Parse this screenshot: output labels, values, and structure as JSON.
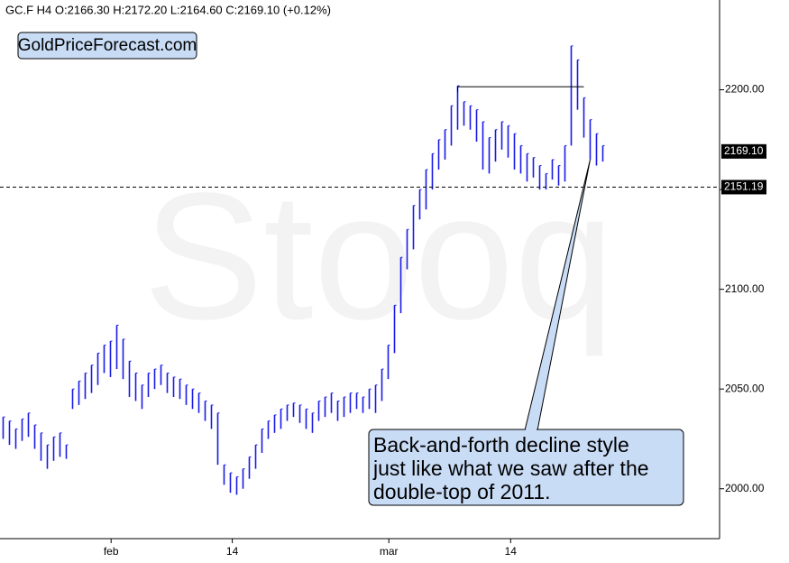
{
  "chart_data": {
    "type": "ohlc",
    "header": "GC.F  H4  O:2166.30  H:2172.20  L:2164.60  C:2169.10  (+0.12%)",
    "logo": "GoldPriceForecast.com",
    "watermark": "Stooq",
    "color": "#1a1ae6",
    "xlim": [
      -0.5,
      113.5
    ],
    "xticks": [
      {
        "value": 17.1,
        "label": "feb"
      },
      {
        "value": 36.3,
        "label": "14"
      },
      {
        "value": 61.1,
        "label": "mar"
      },
      {
        "value": 80.4,
        "label": "14"
      }
    ],
    "ylim": [
      1975,
      2245
    ],
    "yticks": [
      {
        "value": 2000,
        "label": "2000.00"
      },
      {
        "value": 2050,
        "label": "2050.00"
      },
      {
        "value": 2100,
        "label": "2100.00"
      },
      {
        "value": 2150,
        "label": "2150.00"
      },
      {
        "value": 2200,
        "label": "2200.00"
      }
    ],
    "last_price": {
      "value": 2169.1,
      "label": "2169.10"
    },
    "support": {
      "value": 2151.19,
      "label": "2151.19"
    },
    "resistance": {
      "value": 2201.5,
      "x": [
        72,
        92
      ]
    },
    "annotation": {
      "lines": [
        "Back-and-forth decline style",
        "just like what we saw after the",
        "double-top of 2011."
      ],
      "target_x": 93,
      "target_y": 2165
    },
    "high": [
      2036,
      2034,
      2030,
      2035,
      2038,
      2032,
      2028,
      2022,
      2026,
      2028,
      2022,
      2050,
      2054,
      2058,
      2062,
      2068,
      2072,
      2074,
      2082,
      2075,
      2064,
      2058,
      2052,
      2058,
      2060,
      2062,
      2058,
      2056,
      2055,
      2052,
      2050,
      2048,
      2044,
      2042,
      2038,
      2012,
      2008,
      2006,
      2010,
      2016,
      2022,
      2030,
      2034,
      2037,
      2040,
      2042,
      2043,
      2042,
      2040,
      2038,
      2044,
      2046,
      2048,
      2044,
      2046,
      2048,
      2048,
      2046,
      2050,
      2052,
      2060,
      2072,
      2092,
      2116,
      2130,
      2142,
      2150,
      2160,
      2168,
      2175,
      2180,
      2192,
      2202,
      2194,
      2192,
      2190,
      2184,
      2176,
      2180,
      2184,
      2182,
      2178,
      2172,
      2168,
      2166,
      2162,
      2158,
      2165,
      2162,
      2172,
      2222,
      2215,
      2196,
      2185,
      2178,
      2172
    ],
    "low": [
      2025,
      2022,
      2020,
      2024,
      2026,
      2020,
      2014,
      2010,
      2014,
      2016,
      2015,
      2040,
      2042,
      2045,
      2048,
      2052,
      2058,
      2056,
      2060,
      2055,
      2046,
      2044,
      2040,
      2046,
      2050,
      2052,
      2048,
      2046,
      2045,
      2042,
      2040,
      2038,
      2034,
      2030,
      2012,
      2002,
      1998,
      1997,
      2000,
      2005,
      2010,
      2018,
      2025,
      2028,
      2030,
      2034,
      2036,
      2033,
      2030,
      2028,
      2034,
      2036,
      2038,
      2034,
      2036,
      2038,
      2040,
      2038,
      2040,
      2038,
      2044,
      2055,
      2068,
      2088,
      2110,
      2120,
      2135,
      2140,
      2150,
      2160,
      2165,
      2172,
      2180,
      2182,
      2180,
      2174,
      2160,
      2158,
      2164,
      2170,
      2166,
      2160,
      2158,
      2154,
      2156,
      2150,
      2150,
      2155,
      2152,
      2154,
      2172,
      2190,
      2176,
      2165,
      2162,
      2164
    ]
  }
}
